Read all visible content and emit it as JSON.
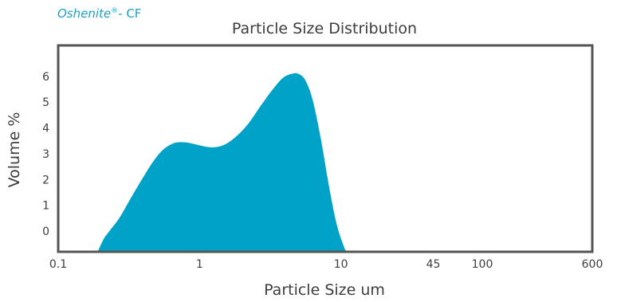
{
  "brand": {
    "name": "Oshenite",
    "reg": "®",
    "suffix": "- CF",
    "color": "#1ea0c6"
  },
  "chart_data": {
    "type": "area",
    "title": "Particle Size Distribution",
    "xlabel": "Particle Size um",
    "ylabel": "Volume %",
    "x_scale": "log",
    "xlim": [
      0.1,
      600
    ],
    "ylim": [
      -0.8,
      7.2
    ],
    "x_ticks": [
      {
        "value": 0.1,
        "label": "0.1"
      },
      {
        "value": 1,
        "label": "1"
      },
      {
        "value": 10,
        "label": "10"
      },
      {
        "value": 45,
        "label": "45"
      },
      {
        "value": 100,
        "label": "100"
      },
      {
        "value": 600,
        "label": "600"
      }
    ],
    "y_ticks": [
      {
        "value": 0,
        "label": "0"
      },
      {
        "value": 1,
        "label": "1"
      },
      {
        "value": 2,
        "label": "2"
      },
      {
        "value": 3,
        "label": "3"
      },
      {
        "value": 4,
        "label": "4"
      },
      {
        "value": 5,
        "label": "5"
      },
      {
        "value": 6,
        "label": "6"
      }
    ],
    "grid": false,
    "fill_color": "#00a3c7",
    "frame_color": "#555555",
    "points": [
      {
        "x": 0.19,
        "y": -0.8
      },
      {
        "x": 0.21,
        "y": -0.3
      },
      {
        "x": 0.23,
        "y": 0.0
      },
      {
        "x": 0.27,
        "y": 0.5
      },
      {
        "x": 0.32,
        "y": 1.2
      },
      {
        "x": 0.39,
        "y": 2.0
      },
      {
        "x": 0.47,
        "y": 2.7
      },
      {
        "x": 0.55,
        "y": 3.15
      },
      {
        "x": 0.65,
        "y": 3.4
      },
      {
        "x": 0.75,
        "y": 3.45
      },
      {
        "x": 0.88,
        "y": 3.4
      },
      {
        "x": 1.05,
        "y": 3.3
      },
      {
        "x": 1.25,
        "y": 3.25
      },
      {
        "x": 1.5,
        "y": 3.35
      },
      {
        "x": 1.8,
        "y": 3.65
      },
      {
        "x": 2.2,
        "y": 4.15
      },
      {
        "x": 2.7,
        "y": 4.85
      },
      {
        "x": 3.3,
        "y": 5.5
      },
      {
        "x": 3.9,
        "y": 5.95
      },
      {
        "x": 4.5,
        "y": 6.1
      },
      {
        "x": 5.0,
        "y": 6.1
      },
      {
        "x": 5.6,
        "y": 5.85
      },
      {
        "x": 6.3,
        "y": 5.1
      },
      {
        "x": 7.2,
        "y": 3.6
      },
      {
        "x": 8.2,
        "y": 1.8
      },
      {
        "x": 9.3,
        "y": 0.3
      },
      {
        "x": 10.5,
        "y": -0.6
      },
      {
        "x": 11.0,
        "y": -0.8
      }
    ]
  }
}
